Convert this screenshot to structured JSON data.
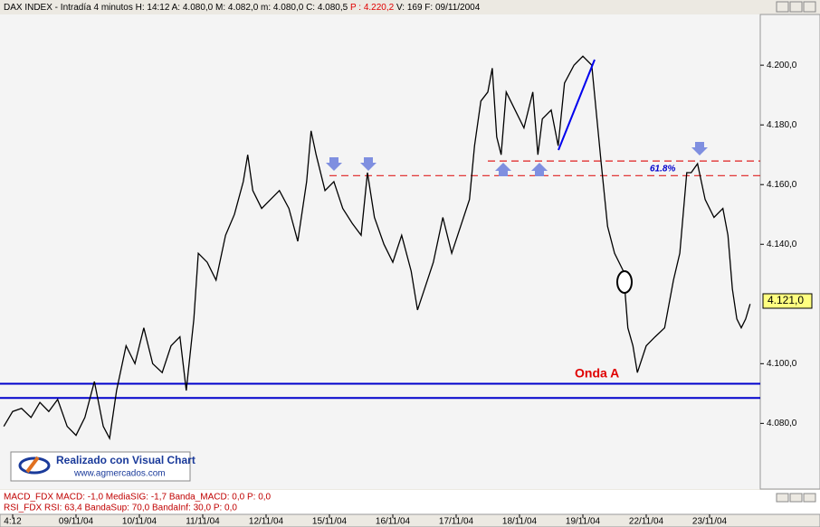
{
  "chart_data": {
    "type": "line",
    "header": "DAX INDEX - Intradía 4 minutos  H: 14:12  A: 4.080,0  M: 4.082,0  m: 4.080,0  C: 4.080,5",
    "header_p": "P : 4.220,2",
    "header_tail": "V: 169  F: 09/11/2004",
    "x": [
      -0.14,
      0,
      0.14,
      0.29,
      0.43,
      0.57,
      0.71,
      0.86,
      1,
      1.14,
      1.29,
      1.43,
      1.53,
      1.64,
      1.79,
      1.93,
      2.07,
      2.21,
      2.36,
      2.5,
      2.64,
      2.74,
      2.86,
      2.93,
      3.07,
      3.21,
      3.36,
      3.5,
      3.64,
      3.71,
      3.79,
      3.93,
      4.07,
      4.21,
      4.36,
      4.5,
      4.64,
      4.71,
      4.79,
      4.93,
      5.07,
      5.21,
      5.36,
      5.5,
      5.6,
      5.71,
      5.86,
      6,
      6.14,
      6.29,
      6.39,
      6.5,
      6.64,
      6.79,
      6.93,
      7.07,
      7.21,
      7.29,
      7.39,
      7.5,
      7.57,
      7.64,
      7.71,
      7.79,
      7.93,
      8.07,
      8.21,
      8.29,
      8.36,
      8.5,
      8.61,
      8.71,
      8.86,
      9,
      9.14,
      9.29,
      9.39,
      9.5,
      9.64,
      9.71,
      9.79,
      9.86,
      10,
      10.14,
      10.29,
      10.43,
      10.53,
      10.64,
      10.71,
      10.81,
      10.93,
      11.07,
      11.21,
      11.29,
      11.36,
      11.43,
      11.5,
      11.57,
      11.64
    ],
    "series": [
      {
        "name": "DAX INDEX",
        "color": "#000000",
        "values": [
          4079,
          4084,
          4085,
          4082,
          4087,
          4084,
          4088,
          4079,
          4076,
          4082,
          4094,
          4079,
          4075,
          4091,
          4106,
          4100,
          4112,
          4100,
          4097,
          4106,
          4109,
          4091,
          4115,
          4137,
          4134,
          4128,
          4143,
          4150,
          4161,
          4170,
          4158,
          4152,
          4155,
          4158,
          4152,
          4141,
          4161,
          4178,
          4170,
          4158,
          4161,
          4152,
          4147,
          4143,
          4164,
          4149,
          4140,
          4134,
          4143,
          4131,
          4118,
          4125,
          4134,
          4149,
          4137,
          4146,
          4155,
          4173,
          4188,
          4191,
          4199,
          4176,
          4170,
          4191,
          4185,
          4179,
          4191,
          4170,
          4182,
          4185,
          4173,
          4194,
          4200,
          4203,
          4200,
          4167,
          4146,
          4137,
          4131,
          4112,
          4106,
          4097,
          4106,
          4109,
          4112,
          4128,
          4137,
          4164,
          4164,
          4167,
          4155,
          4149,
          4152,
          4143,
          4125,
          4115,
          4112,
          4115,
          4120
        ]
      }
    ],
    "xlim": [
      -0.2,
      11.8
    ],
    "xticks": [
      {
        "value": 0,
        "label": "4:12"
      },
      {
        "value": 1,
        "label": "09/11/04"
      },
      {
        "value": 2,
        "label": "10/11/04"
      },
      {
        "value": 3,
        "label": "11/11/04"
      },
      {
        "value": 4,
        "label": "12/11/04"
      },
      {
        "value": 5,
        "label": "15/11/04"
      },
      {
        "value": 6,
        "label": "16/11/04"
      },
      {
        "value": 7,
        "label": "17/11/04"
      },
      {
        "value": 8,
        "label": "18/11/04"
      },
      {
        "value": 9,
        "label": "19/11/04"
      },
      {
        "value": 10,
        "label": "22/11/04"
      },
      {
        "value": 11,
        "label": "23/11/04"
      }
    ],
    "ylim": [
      4058,
      4217
    ],
    "yticks": [
      {
        "value": 4080,
        "label": "4.080,0"
      },
      {
        "value": 4100,
        "label": "4.100,0"
      },
      {
        "value": 4140,
        "label": "4.140,0"
      },
      {
        "value": 4160,
        "label": "4.160,0"
      },
      {
        "value": 4180,
        "label": "4.180,0"
      },
      {
        "value": 4200,
        "label": "4.200,0"
      }
    ],
    "last_price": {
      "value": 4121,
      "label": "4.121,0"
    },
    "levels": [
      {
        "value": 4093.3,
        "color": "#0000cc",
        "style": "solid",
        "from": -0.2
      },
      {
        "value": 4088.5,
        "color": "#0000cc",
        "style": "solid",
        "from": -0.2
      },
      {
        "value": 4167.9,
        "color": "#e02020",
        "style": "dashed",
        "from": 7.5
      },
      {
        "value": 4163,
        "color": "#e02020",
        "style": "dashed",
        "from": 5.0
      }
    ],
    "annotations": {
      "fib": "61.8%",
      "wave": "Onda   A"
    },
    "logo_title": "Realizado con Visual Chart",
    "logo_url": "www.agmercados.com",
    "macd": "MACD_FDX  MACD: -1,0  MediaSIG: -1,7  Banda_MACD: 0,0  P: 0,0",
    "rsi": "RSI_FDX  RSI: 63,4  BandaSup: 70,0  BandaInf: 30,0  P: 0,0"
  }
}
